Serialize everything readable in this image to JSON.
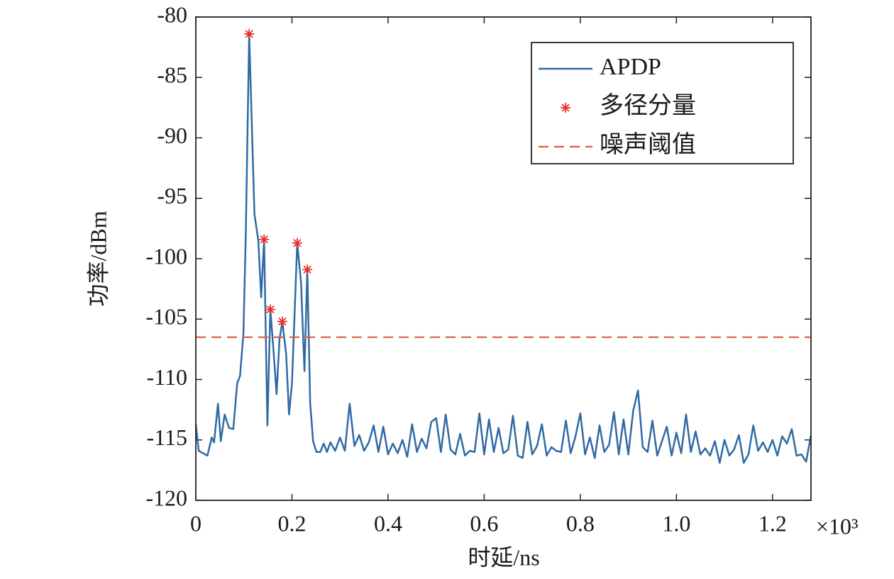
{
  "chart_data": {
    "type": "line",
    "x_label": "时延/ns",
    "y_label": "功率/dBm",
    "x_multiplier": "×10³",
    "xlim": [
      0,
      1.28
    ],
    "xticks": [
      0,
      0.2,
      0.4,
      0.6,
      0.8,
      {
        "value": 1,
        "label": "1.0"
      },
      1.2
    ],
    "ylim": [
      -120,
      -80
    ],
    "yticks": [
      -120,
      -115,
      -110,
      -105,
      -100,
      -95,
      -90,
      -85,
      -80
    ],
    "legend": "upper right",
    "series": [
      {
        "name": "APDP",
        "type": "line",
        "color": "#2f6aa5",
        "x": [
          0,
          0.006,
          0.024,
          0.033,
          0.038,
          0.046,
          0.052,
          0.06,
          0.069,
          0.078,
          0.086,
          0.092,
          0.099,
          0.104,
          0.111,
          0.122,
          0.13,
          0.136,
          0.142,
          0.149,
          0.155,
          0.161,
          0.168,
          0.174,
          0.18,
          0.188,
          0.194,
          0.2,
          0.205,
          0.211,
          0.219,
          0.226,
          0.232,
          0.238,
          0.244,
          0.251,
          0.259,
          0.266,
          0.273,
          0.28,
          0.29,
          0.3,
          0.31,
          0.32,
          0.33,
          0.34,
          0.35,
          0.36,
          0.37,
          0.38,
          0.39,
          0.4,
          0.41,
          0.42,
          0.43,
          0.44,
          0.45,
          0.46,
          0.47,
          0.48,
          0.49,
          0.5,
          0.51,
          0.52,
          0.53,
          0.54,
          0.55,
          0.56,
          0.57,
          0.58,
          0.59,
          0.6,
          0.61,
          0.62,
          0.63,
          0.64,
          0.65,
          0.66,
          0.67,
          0.68,
          0.69,
          0.7,
          0.71,
          0.72,
          0.73,
          0.74,
          0.75,
          0.76,
          0.77,
          0.78,
          0.79,
          0.8,
          0.81,
          0.82,
          0.83,
          0.84,
          0.85,
          0.86,
          0.87,
          0.88,
          0.89,
          0.9,
          0.91,
          0.92,
          0.93,
          0.94,
          0.95,
          0.96,
          0.97,
          0.98,
          0.99,
          1,
          1.01,
          1.02,
          1.03,
          1.04,
          1.05,
          1.06,
          1.07,
          1.08,
          1.09,
          1.1,
          1.11,
          1.12,
          1.13,
          1.14,
          1.15,
          1.16,
          1.17,
          1.18,
          1.19,
          1.2,
          1.21,
          1.22,
          1.23,
          1.24,
          1.25,
          1.26,
          1.27,
          1.28
        ],
        "values": [
          -113.7,
          -115.9,
          -116.3,
          -114.8,
          -115.2,
          -112.0,
          -115.1,
          -112.9,
          -114.0,
          -114.1,
          -110.3,
          -109.7,
          -106.2,
          -98,
          -81.4,
          -96.3,
          -98.5,
          -103.2,
          -98.4,
          -113.8,
          -104.2,
          -107.3,
          -111.2,
          -106.7,
          -105.2,
          -107.9,
          -112.9,
          -110.3,
          -105,
          -98.7,
          -102,
          -109.3,
          -100.9,
          -112,
          -115.1,
          -116,
          -116,
          -115.3,
          -116,
          -115.2,
          -115.9,
          -114.8,
          -115.9,
          -112.0,
          -115.5,
          -114.6,
          -115.9,
          -115.2,
          -113.8,
          -116.0,
          -113.9,
          -116.2,
          -115.3,
          -116.1,
          -115.0,
          -116.4,
          -113.7,
          -116.0,
          -114.9,
          -115.7,
          -113.5,
          -113.2,
          -116.0,
          -112.9,
          -115.8,
          -116.2,
          -114.5,
          -116.3,
          -115.9,
          -116.0,
          -112.8,
          -116.2,
          -113.3,
          -116.0,
          -114.0,
          -116.1,
          -115.8,
          -113.0,
          -116.3,
          -116.5,
          -113.5,
          -116.2,
          -115.5,
          -113.7,
          -116.3,
          -115.6,
          -115.9,
          -116.0,
          -113.4,
          -116.1,
          -114.7,
          -112.8,
          -116.2,
          -114.8,
          -116.5,
          -113.8,
          -116.0,
          -115.4,
          -112.7,
          -116.2,
          -113.3,
          -116.2,
          -112.6,
          -110.9,
          -115.6,
          -116.0,
          -113.4,
          -116.3,
          -115.1,
          -113.9,
          -116.3,
          -114.4,
          -116.1,
          -112.9,
          -116.0,
          -114.3,
          -116.2,
          -115.7,
          -116.3,
          -115.1,
          -116.9,
          -115.0,
          -116.3,
          -115.8,
          -114.6,
          -116.9,
          -116.2,
          -113.8,
          -115.9,
          -115.2,
          -116.0,
          -115.0,
          -116.3,
          -114.7,
          -115.3,
          -114.1,
          -116.3,
          -116.2,
          -116.8,
          -114.6
        ]
      },
      {
        "name": "多径分量",
        "type": "scatter",
        "color": "#e8302a",
        "x": [
          0.111,
          0.142,
          0.155,
          0.18,
          0.211,
          0.232
        ],
        "values": [
          -81.4,
          -98.4,
          -104.2,
          -105.2,
          -98.7,
          -100.9
        ]
      },
      {
        "name": "噪声阈值",
        "type": "hline",
        "color": "#d9603b",
        "value": -106.5
      }
    ]
  }
}
